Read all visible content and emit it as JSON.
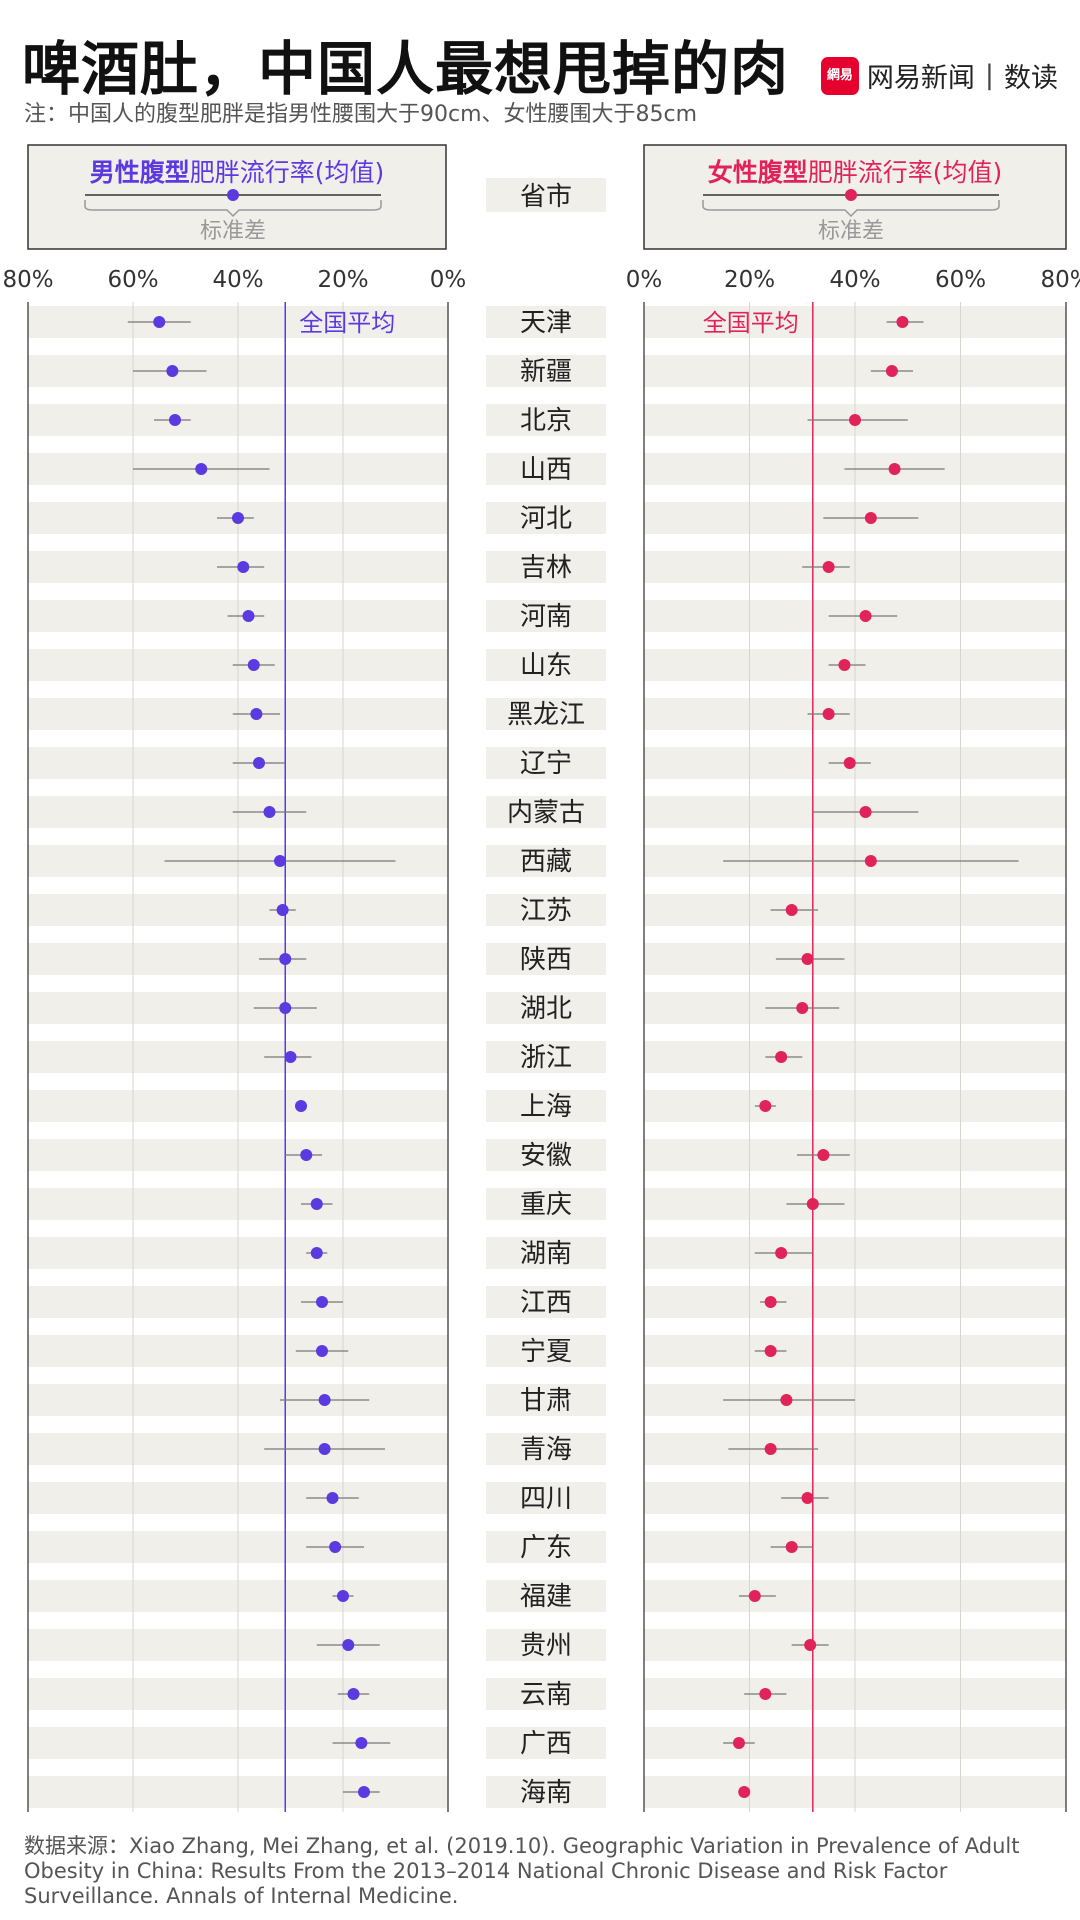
{
  "header": {
    "title": "啤酒肚，中国人最想甩掉的肉",
    "note": "注：中国人的腹型肥胖是指男性腰围大于90cm、女性腰围大于85cm"
  },
  "brand": {
    "logo_text": "網易",
    "name": "网易新闻",
    "sub": "数读"
  },
  "legend": {
    "male_bold": "男性腹型",
    "male_rest": "肥胖流行率(均值)",
    "female_bold": "女性腹型",
    "female_rest": "肥胖流行率(均值)",
    "std_label": "标准差",
    "province_header": "省市"
  },
  "source": "数据来源：Xiao Zhang, Mei Zhang, et al. (2019.10). Geographic Variation in Prevalence of Adult Obesity in China: Results From the 2013–2014 National Chronic Disease and Risk Factor Surveillance. Annals of Internal Medicine.",
  "chart_data": {
    "type": "dot-whisker",
    "x_ticks": [
      "80%",
      "60%",
      "40%",
      "20%",
      "0%"
    ],
    "x_ticks_right": [
      "0%",
      "20%",
      "40%",
      "60%",
      "80%"
    ],
    "xlim": [
      0,
      80
    ],
    "national_avg_label": "全国平均",
    "male_avg": 31,
    "female_avg": 32,
    "male_color": "#5b3ae0",
    "female_color": "#e0245a",
    "provinces": [
      "天津",
      "新疆",
      "北京",
      "山西",
      "河北",
      "吉林",
      "河南",
      "山东",
      "黑龙江",
      "辽宁",
      "内蒙古",
      "西藏",
      "江苏",
      "陕西",
      "湖北",
      "浙江",
      "上海",
      "安徽",
      "重庆",
      "湖南",
      "江西",
      "宁夏",
      "甘肃",
      "青海",
      "四川",
      "广东",
      "福建",
      "贵州",
      "云南",
      "广西",
      "海南"
    ],
    "male": [
      {
        "mean": 55,
        "lo": 49,
        "hi": 61
      },
      {
        "mean": 52.5,
        "lo": 46,
        "hi": 60
      },
      {
        "mean": 52,
        "lo": 49,
        "hi": 56
      },
      {
        "mean": 47,
        "lo": 34,
        "hi": 60
      },
      {
        "mean": 40,
        "lo": 37,
        "hi": 44
      },
      {
        "mean": 39,
        "lo": 35,
        "hi": 44
      },
      {
        "mean": 38,
        "lo": 35,
        "hi": 42
      },
      {
        "mean": 37,
        "lo": 33,
        "hi": 41
      },
      {
        "mean": 36.5,
        "lo": 32,
        "hi": 41
      },
      {
        "mean": 36,
        "lo": 31,
        "hi": 41
      },
      {
        "mean": 34,
        "lo": 27,
        "hi": 41
      },
      {
        "mean": 32,
        "lo": 10,
        "hi": 54
      },
      {
        "mean": 31.5,
        "lo": 29,
        "hi": 34
      },
      {
        "mean": 31,
        "lo": 27,
        "hi": 36
      },
      {
        "mean": 31,
        "lo": 25,
        "hi": 37
      },
      {
        "mean": 30,
        "lo": 26,
        "hi": 35
      },
      {
        "mean": 28,
        "lo": 27,
        "hi": 29
      },
      {
        "mean": 27,
        "lo": 24,
        "hi": 31
      },
      {
        "mean": 25,
        "lo": 22,
        "hi": 28
      },
      {
        "mean": 25,
        "lo": 23,
        "hi": 27
      },
      {
        "mean": 24,
        "lo": 20,
        "hi": 28
      },
      {
        "mean": 24,
        "lo": 19,
        "hi": 29
      },
      {
        "mean": 23.5,
        "lo": 15,
        "hi": 32
      },
      {
        "mean": 23.5,
        "lo": 12,
        "hi": 35
      },
      {
        "mean": 22,
        "lo": 17,
        "hi": 27
      },
      {
        "mean": 21.5,
        "lo": 16,
        "hi": 27
      },
      {
        "mean": 20,
        "lo": 18,
        "hi": 22
      },
      {
        "mean": 19,
        "lo": 13,
        "hi": 25
      },
      {
        "mean": 18,
        "lo": 15,
        "hi": 21
      },
      {
        "mean": 16.5,
        "lo": 11,
        "hi": 22
      },
      {
        "mean": 16,
        "lo": 13,
        "hi": 20
      }
    ],
    "female": [
      {
        "mean": 49,
        "lo": 46,
        "hi": 53
      },
      {
        "mean": 47,
        "lo": 43,
        "hi": 51
      },
      {
        "mean": 40,
        "lo": 31,
        "hi": 50
      },
      {
        "mean": 47.5,
        "lo": 38,
        "hi": 57
      },
      {
        "mean": 43,
        "lo": 34,
        "hi": 52
      },
      {
        "mean": 35,
        "lo": 30,
        "hi": 39
      },
      {
        "mean": 42,
        "lo": 35,
        "hi": 48
      },
      {
        "mean": 38,
        "lo": 35,
        "hi": 42
      },
      {
        "mean": 35,
        "lo": 31,
        "hi": 39
      },
      {
        "mean": 39,
        "lo": 35,
        "hi": 43
      },
      {
        "mean": 42,
        "lo": 32,
        "hi": 52
      },
      {
        "mean": 43,
        "lo": 15,
        "hi": 71
      },
      {
        "mean": 28,
        "lo": 24,
        "hi": 33
      },
      {
        "mean": 31,
        "lo": 25,
        "hi": 38
      },
      {
        "mean": 30,
        "lo": 23,
        "hi": 37
      },
      {
        "mean": 26,
        "lo": 23,
        "hi": 30
      },
      {
        "mean": 23,
        "lo": 21,
        "hi": 25
      },
      {
        "mean": 34,
        "lo": 29,
        "hi": 39
      },
      {
        "mean": 32,
        "lo": 27,
        "hi": 38
      },
      {
        "mean": 26,
        "lo": 21,
        "hi": 32
      },
      {
        "mean": 24,
        "lo": 22,
        "hi": 27
      },
      {
        "mean": 24,
        "lo": 21,
        "hi": 27
      },
      {
        "mean": 27,
        "lo": 15,
        "hi": 40
      },
      {
        "mean": 24,
        "lo": 16,
        "hi": 33
      },
      {
        "mean": 31,
        "lo": 26,
        "hi": 35
      },
      {
        "mean": 28,
        "lo": 24,
        "hi": 32
      },
      {
        "mean": 21,
        "lo": 18,
        "hi": 25
      },
      {
        "mean": 31.5,
        "lo": 28,
        "hi": 35
      },
      {
        "mean": 23,
        "lo": 19,
        "hi": 27
      },
      {
        "mean": 18,
        "lo": 15,
        "hi": 21
      },
      {
        "mean": 19,
        "lo": 18,
        "hi": 20
      }
    ]
  }
}
